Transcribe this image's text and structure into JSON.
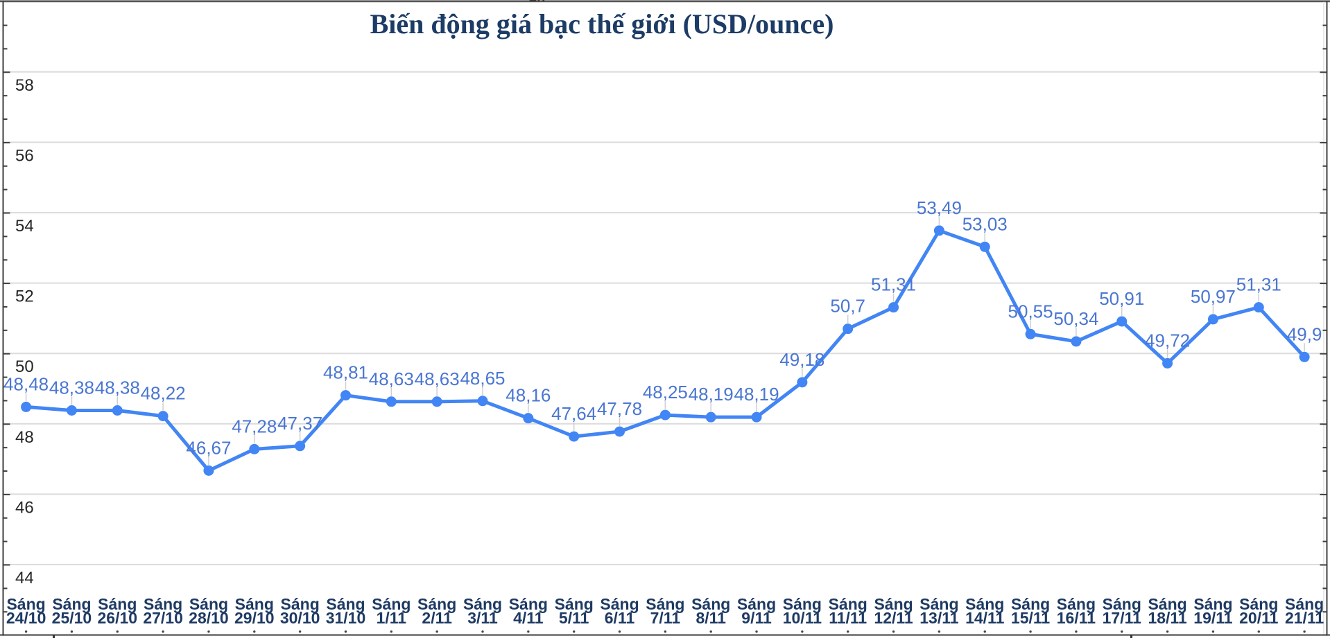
{
  "page": {
    "top_clipped_text": "2h"
  },
  "chart_data": {
    "type": "line",
    "title": "Biến động giá bạc thế giới (USD/ounce)",
    "categories": [
      "Sáng 24/10",
      "Sáng 25/10",
      "Sáng 26/10",
      "Sáng 27/10",
      "Sáng 28/10",
      "Sáng 29/10",
      "Sáng 30/10",
      "Sáng 31/10",
      "Sáng 1/11",
      "Sáng 2/11",
      "Sáng 3/11",
      "Sáng 4/11",
      "Sáng 5/11",
      "Sáng 6/11",
      "Sáng 7/11",
      "Sáng 8/11",
      "Sáng 9/11",
      "Sáng 10/11",
      "Sáng 11/11",
      "Sáng 12/11",
      "Sáng 13/11",
      "Sáng 14/11",
      "Sáng 15/11",
      "Sáng 16/11",
      "Sáng 17/11",
      "Sáng 18/11",
      "Sáng 19/11",
      "Sáng 20/11",
      "Sáng 21/11"
    ],
    "values": [
      48.48,
      48.38,
      48.38,
      48.22,
      46.67,
      47.28,
      47.37,
      48.81,
      48.63,
      48.63,
      48.65,
      48.16,
      47.64,
      47.78,
      48.25,
      48.19,
      48.19,
      49.18,
      50.7,
      51.31,
      53.49,
      53.03,
      50.55,
      50.34,
      50.91,
      49.72,
      50.97,
      51.31,
      49.9
    ],
    "point_labels": [
      "48,48",
      "48,38",
      "48,38",
      "48,22",
      "46,67",
      "47,28",
      "47,37",
      "48,81",
      "48,63",
      "48,63",
      "48,65",
      "48,16",
      "47,64",
      "47,78",
      "48,25",
      "48,19",
      "48,19",
      "49,18",
      "50,7",
      "51,31",
      "53,49",
      "53,03",
      "50,55",
      "50,34",
      "50,91",
      "49,72",
      "50,97",
      "51,31",
      "49,9"
    ],
    "yticks": [
      58,
      56,
      54,
      52,
      50,
      48,
      46,
      44
    ],
    "ylim": [
      42,
      60
    ],
    "grid": true,
    "legend": "none",
    "series_color": "#4285f4",
    "point_label_color": "#4a76d2",
    "x_label_color": "#1e3a63",
    "y_label_color": "#262626",
    "gridline_color": "#dcdcdc",
    "axis_color": "#3f3f3f",
    "leader_color": "#cfcfcf"
  }
}
